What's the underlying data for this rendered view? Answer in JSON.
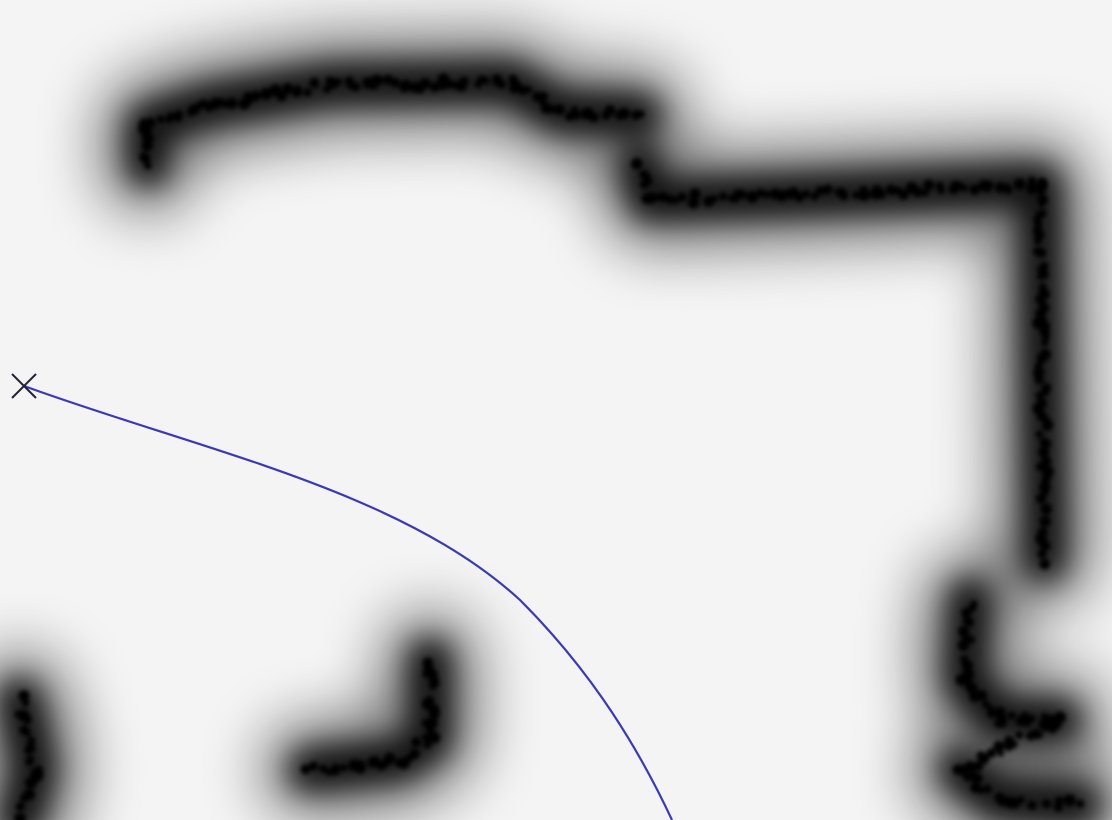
{
  "image": {
    "kind": "distance-field",
    "background_color": "#f4f4f4",
    "obstacle_color": "#000000",
    "path_color": "#3a3ab8",
    "start_marker_color": "#222233"
  },
  "markers": [
    {
      "name": "start-marker",
      "glyph": "cross-icon"
    }
  ],
  "obstacle_groups": [
    "top-left-wall",
    "top-right-wall",
    "right-vertical-wall",
    "bottom-left-fragment",
    "bottom-center-L",
    "bottom-right-cluster"
  ]
}
